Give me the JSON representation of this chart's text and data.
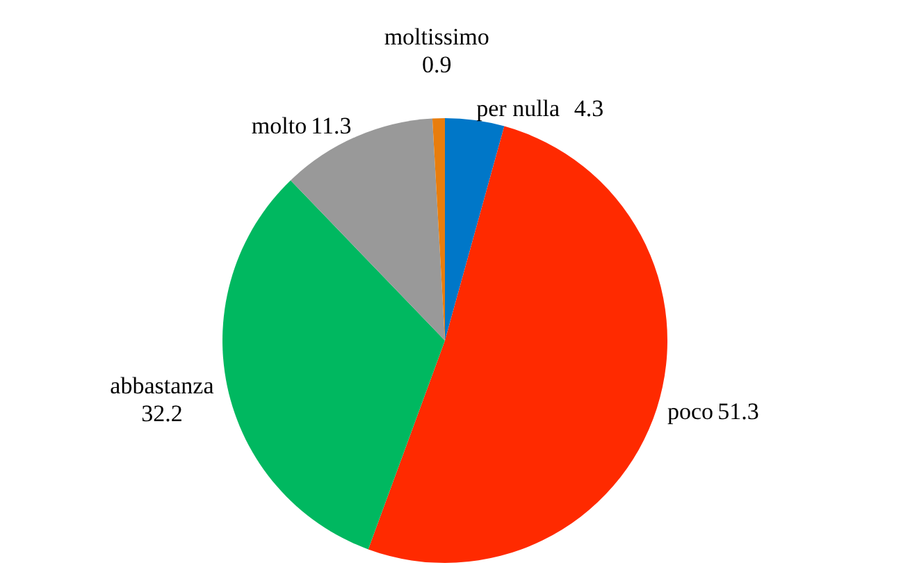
{
  "chart_data": {
    "type": "pie",
    "categories": [
      "per nulla",
      "poco",
      "abbastanza",
      "molto",
      "moltissimo"
    ],
    "values": [
      4.3,
      51.3,
      32.2,
      11.3,
      0.9
    ],
    "colors": [
      "#0077c8",
      "#ff2a00",
      "#00b860",
      "#999999",
      "#e87d0d"
    ],
    "data_labels": true
  }
}
